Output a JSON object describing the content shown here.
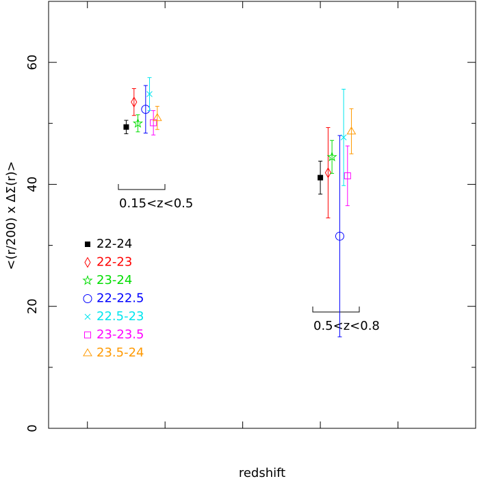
{
  "chart_data": {
    "type": "scatter",
    "xlabel": "redshift",
    "ylabel": "<(r/200) x ΔΣ(r)>",
    "xlim": [
      0,
      1.1
    ],
    "xticks": [
      0.1,
      0.3,
      0.5,
      0.7,
      0.9
    ],
    "ylim": [
      0,
      70
    ],
    "yticks": [
      0,
      20,
      40,
      60
    ],
    "yminorticks": [
      10,
      30,
      50
    ],
    "legend": "left",
    "annotations": [
      "0.15<z<0.5",
      "0.5<z<0.8"
    ],
    "series": [
      {
        "name": "22-24",
        "color": "#000000",
        "marker": "filled-square",
        "x": [
          0.2,
          0.7
        ],
        "values": [
          49.4,
          41.1
        ],
        "errors": [
          1.1,
          2.7
        ]
      },
      {
        "name": "22-23",
        "color": "#ff0000",
        "marker": "diamond",
        "x": [
          0.22,
          0.72
        ],
        "values": [
          53.5,
          41.9
        ],
        "errors": [
          2.2,
          7.4
        ]
      },
      {
        "name": "23-24",
        "color": "#00dd00",
        "marker": "star",
        "x": [
          0.23,
          0.73
        ],
        "values": [
          50.0,
          44.5
        ],
        "errors": [
          1.4,
          2.7
        ]
      },
      {
        "name": "22-22.5",
        "color": "#0000ff",
        "marker": "circle",
        "x": [
          0.25,
          0.75
        ],
        "values": [
          52.3,
          31.5
        ],
        "errors": [
          3.9,
          16.5
        ]
      },
      {
        "name": "22.5-23",
        "color": "#00e5ee",
        "marker": "cross",
        "x": [
          0.26,
          0.76
        ],
        "values": [
          54.8,
          47.7
        ],
        "errors": [
          2.7,
          7.9
        ]
      },
      {
        "name": "23-23.5",
        "color": "#ff00ff",
        "marker": "square",
        "x": [
          0.27,
          0.77
        ],
        "values": [
          50.1,
          41.4
        ],
        "errors": [
          2.0,
          4.9
        ]
      },
      {
        "name": "23.5-24",
        "color": "#ff9900",
        "marker": "triangle",
        "x": [
          0.28,
          0.78
        ],
        "values": [
          50.9,
          48.7
        ],
        "errors": [
          1.9,
          3.7
        ]
      }
    ]
  }
}
